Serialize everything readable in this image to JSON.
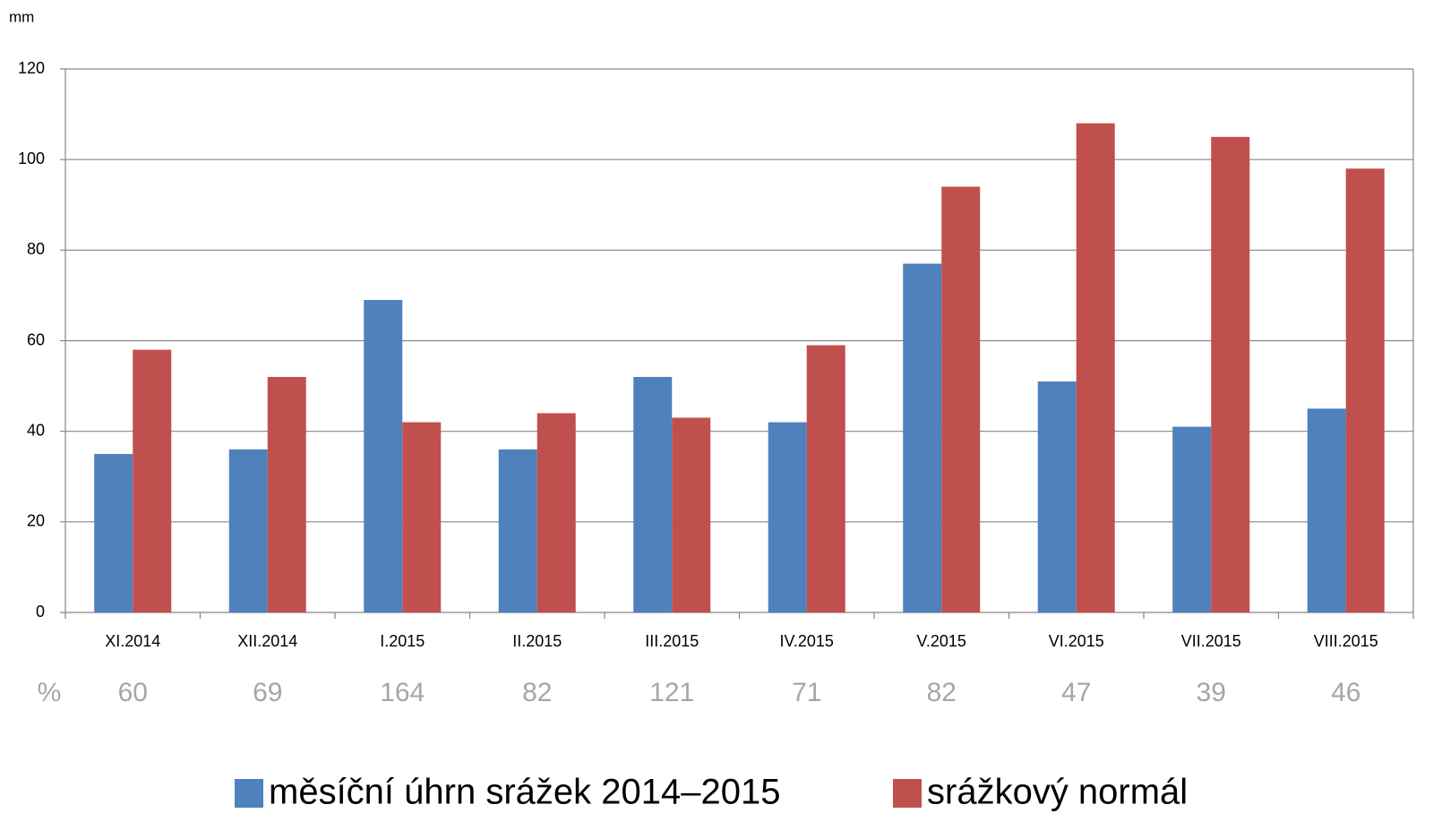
{
  "chart_data": {
    "type": "bar",
    "y_unit": "mm",
    "categories": [
      "XI.2014",
      "XII.2014",
      "I.2015",
      "II.2015",
      "III.2015",
      "IV.2015",
      "V.2015",
      "VI.2015",
      "VII.2015",
      "VIII.2015"
    ],
    "series": [
      {
        "name": "měsíční úhrn srážek 2014–2015",
        "color": "#4f81bd",
        "values": [
          35,
          36,
          69,
          36,
          52,
          42,
          77,
          51,
          41,
          45
        ]
      },
      {
        "name": "srážkový normál",
        "color": "#c0504d",
        "values": [
          58,
          52,
          42,
          44,
          43,
          59,
          94,
          108,
          105,
          98
        ]
      }
    ],
    "percent_label": "%",
    "percent_values": [
      60,
      69,
      164,
      82,
      121,
      71,
      82,
      47,
      39,
      46
    ],
    "ylim": [
      0,
      120
    ],
    "yticks": [
      0,
      20,
      40,
      60,
      80,
      100,
      120
    ],
    "grid": true
  }
}
